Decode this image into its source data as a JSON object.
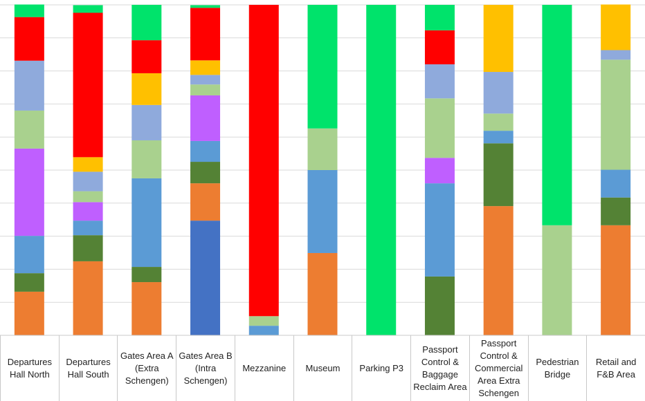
{
  "chart_data": {
    "type": "stacked_bar_100",
    "categories": [
      "Departures Hall North",
      "Departures Hall South",
      "Gates Area A (Extra Schengen)",
      "Gates Area B (Intra Schengen)",
      "Mezzanine",
      "Museum",
      "Parking P3",
      "Passport Control & Baggage Reclaim Area",
      "Passport Control & Commercial Area Extra Schengen",
      "Pedestrian Bridge",
      "Retail and F&B Area"
    ],
    "series": [
      {
        "color": "#4472c4",
        "values": [
          null,
          null,
          null,
          34.7,
          null,
          null,
          null,
          null,
          null,
          null,
          null
        ]
      },
      {
        "color": "#ed7d31",
        "values": [
          13.2,
          22.4,
          16.1,
          11.3,
          null,
          24.9,
          null,
          null,
          39.1,
          null,
          33.3
        ]
      },
      {
        "color": "#548235",
        "values": [
          5.6,
          7.9,
          4.6,
          6.5,
          null,
          null,
          null,
          17.8,
          19,
          null,
          8.4
        ]
      },
      {
        "color": "#5b9bd5",
        "values": [
          11.3,
          4.4,
          26.8,
          6.3,
          2.9,
          25.1,
          null,
          28.2,
          3.8,
          null,
          8.4
        ]
      },
      {
        "color": "#bf5fff",
        "values": [
          26.4,
          5.6,
          null,
          13.8,
          null,
          null,
          null,
          7.7,
          null,
          null,
          null
        ]
      },
      {
        "color": "#a9d18e",
        "values": [
          11.5,
          3.3,
          11.5,
          3.3,
          2.9,
          12.6,
          null,
          18,
          5.2,
          33.3,
          33.3
        ]
      },
      {
        "color": "#8faadc",
        "values": [
          15.1,
          5.9,
          10.7,
          2.9,
          null,
          null,
          null,
          10.3,
          12.6,
          null,
          2.9
        ]
      },
      {
        "color": "#ffc000",
        "values": [
          null,
          4.4,
          9.6,
          4.4,
          null,
          null,
          null,
          null,
          20.3,
          null,
          13.8
        ]
      },
      {
        "color": "#ff0000",
        "values": [
          13.2,
          43.7,
          10,
          15.9,
          94.2,
          null,
          null,
          10.3,
          null,
          null,
          null
        ]
      },
      {
        "color": "#00e36b",
        "values": [
          3.8,
          2.3,
          10.7,
          0.8,
          null,
          37.4,
          100,
          7.7,
          null,
          66.7,
          null
        ]
      }
    ],
    "ylim": [
      0,
      100
    ],
    "yticks": [
      0,
      10,
      20,
      30,
      40,
      50,
      60,
      70,
      80,
      90,
      100
    ],
    "grid": true
  }
}
